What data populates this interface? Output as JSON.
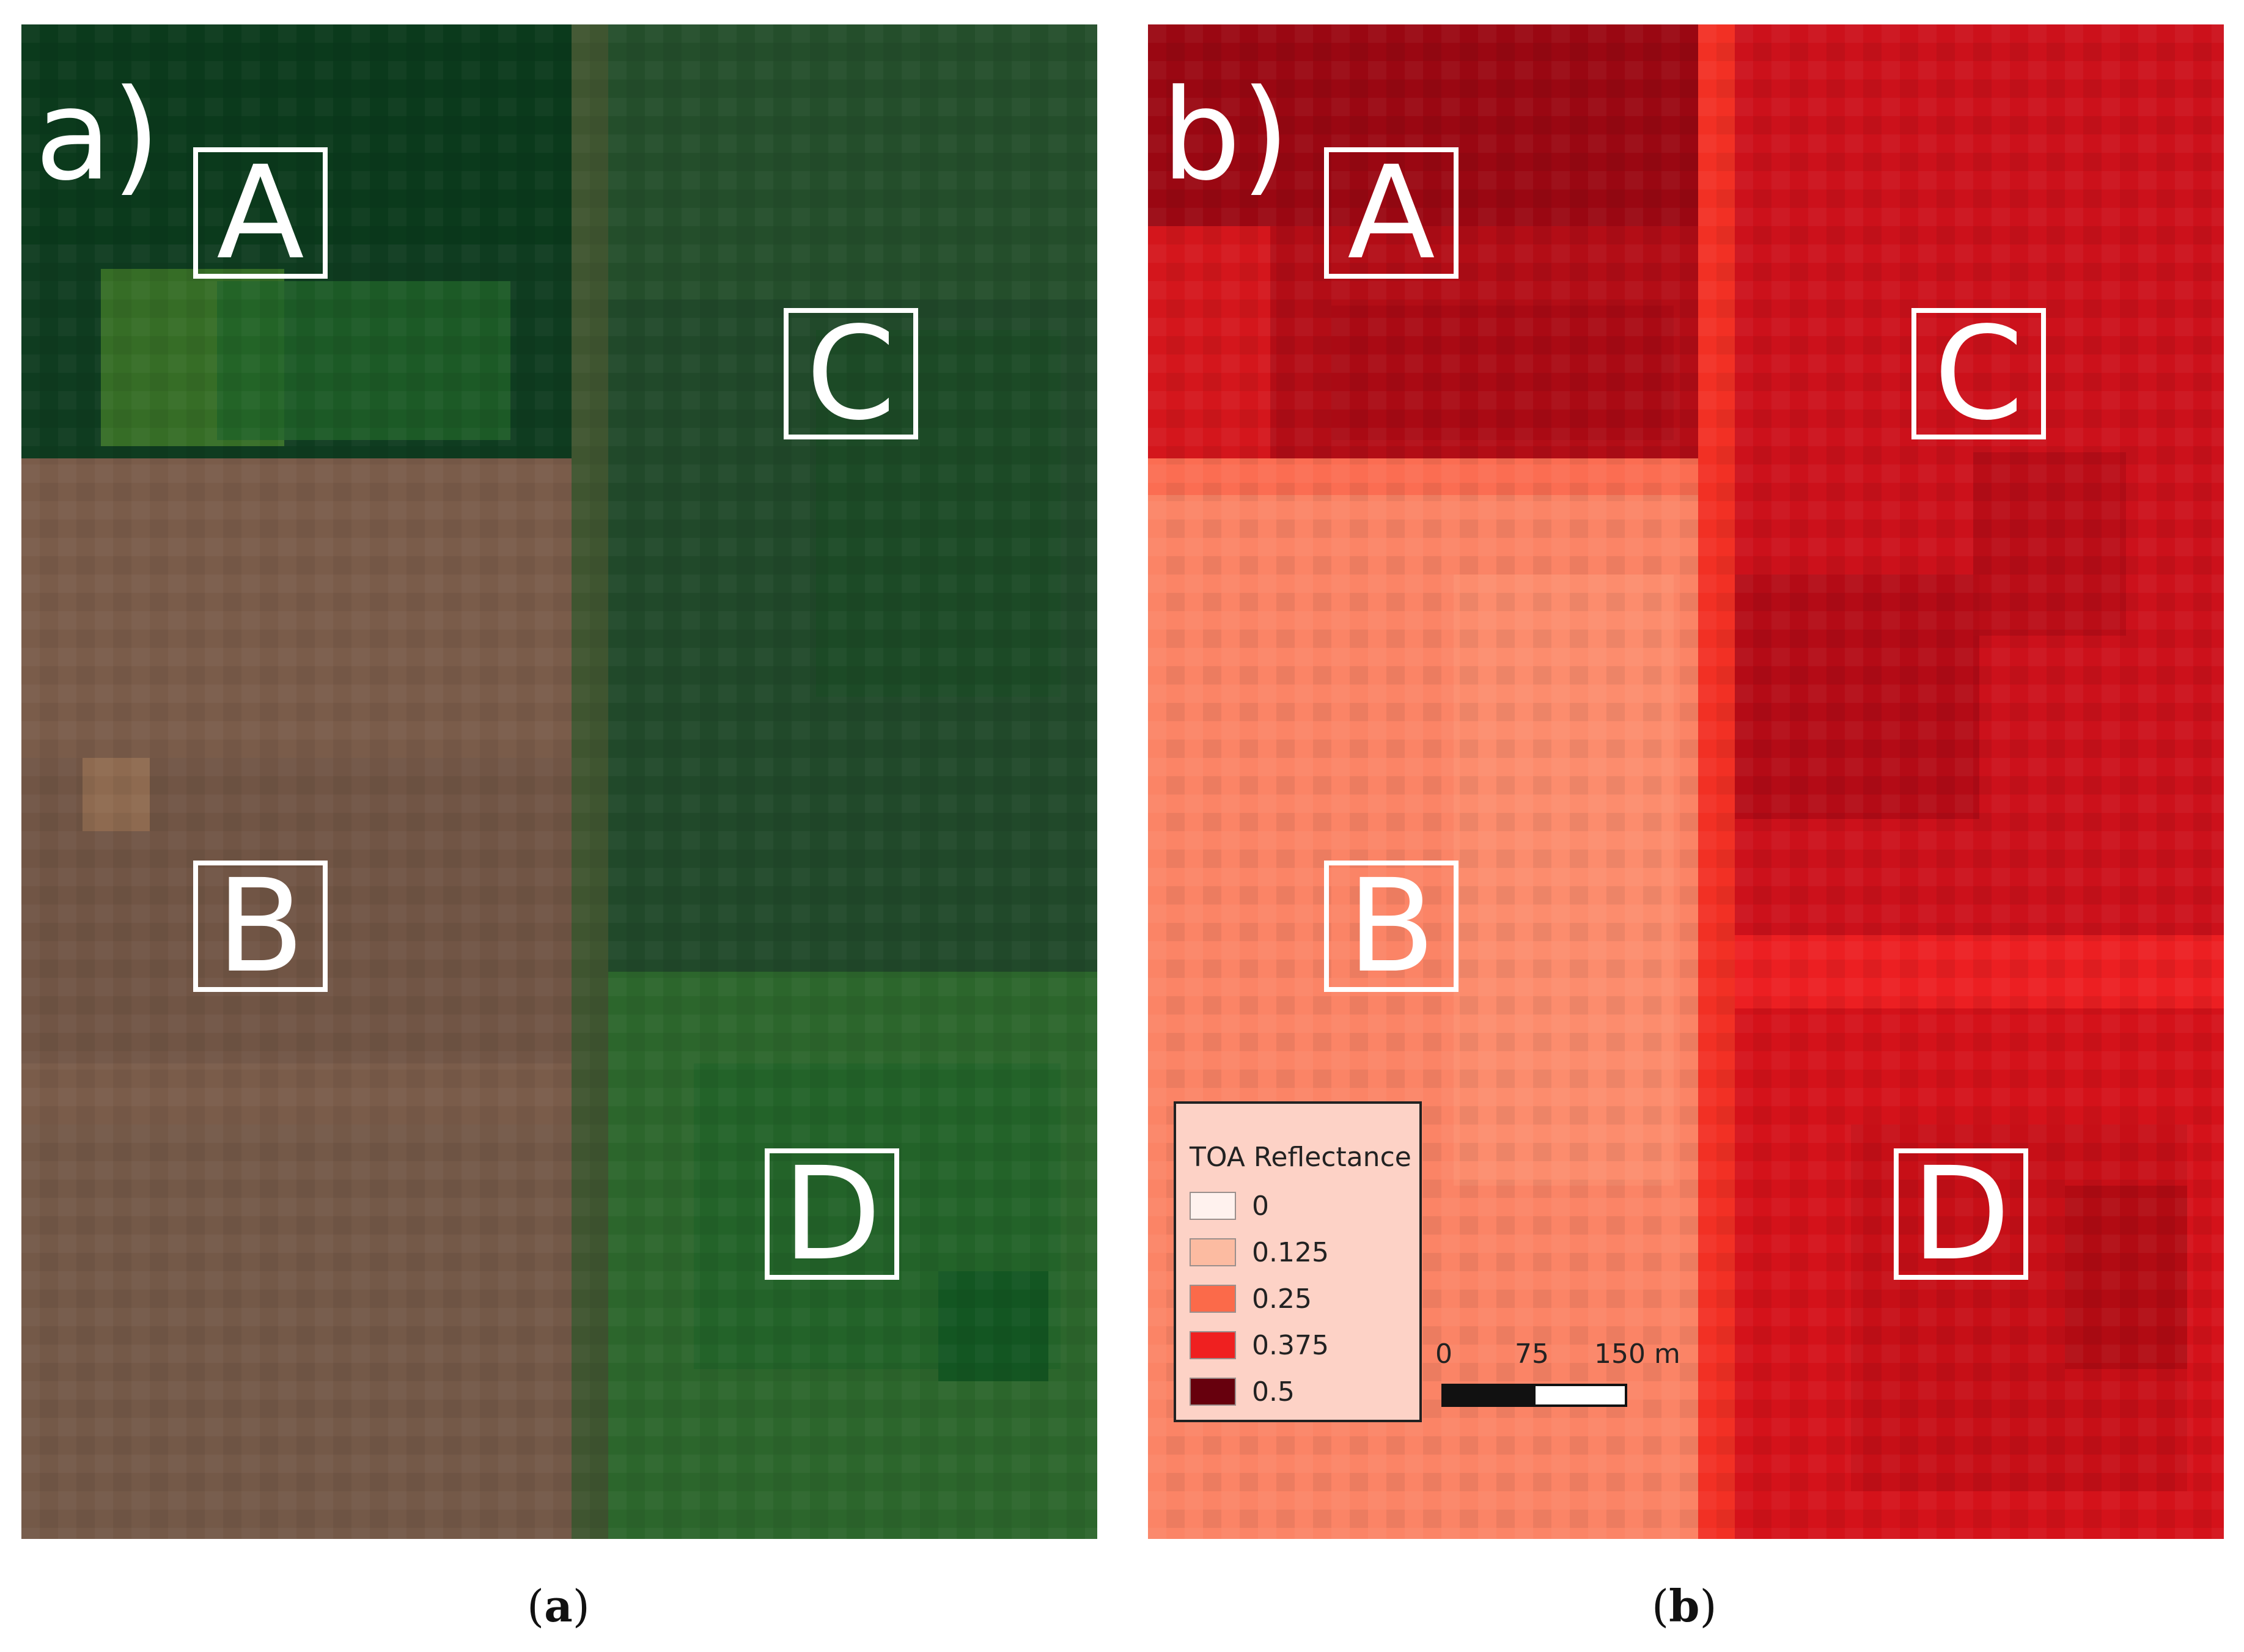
{
  "panels": [
    {
      "id": "a",
      "label": "a)",
      "caption_open": "(",
      "caption_letter": "a",
      "caption_close": ")",
      "fields": [
        "A",
        "B",
        "C",
        "D"
      ],
      "colors": {
        "field_A_dark": "#0c3a1e",
        "field_A_light": "#2f6a2a",
        "field_B": "#7a5a48",
        "field_C": "#1f4a28",
        "field_D": "#2d6a2e",
        "boundary": "#4a5a32"
      }
    },
    {
      "id": "b",
      "label": "b)",
      "caption_open": "(",
      "caption_letter": "b",
      "caption_close": ")",
      "fields": [
        "A",
        "B",
        "C",
        "D"
      ],
      "colors": {
        "field_A": "#a50a14",
        "field_B": "#fb8468",
        "field_C": "#c9101b",
        "field_D": "#d01018",
        "boundary": "#ef2b25"
      }
    }
  ],
  "legend": {
    "title": "TOA Reflectance",
    "items": [
      {
        "label": "0",
        "color": "#fff2ee"
      },
      {
        "label": "0.125",
        "color": "#fcbba1"
      },
      {
        "label": "0.25",
        "color": "#fb6a4a"
      },
      {
        "label": "0.375",
        "color": "#ef2020"
      },
      {
        "label": "0.5",
        "color": "#67000d"
      }
    ]
  },
  "scalebar": {
    "ticks": [
      "0",
      "75",
      "150 m"
    ],
    "unit": "m"
  }
}
